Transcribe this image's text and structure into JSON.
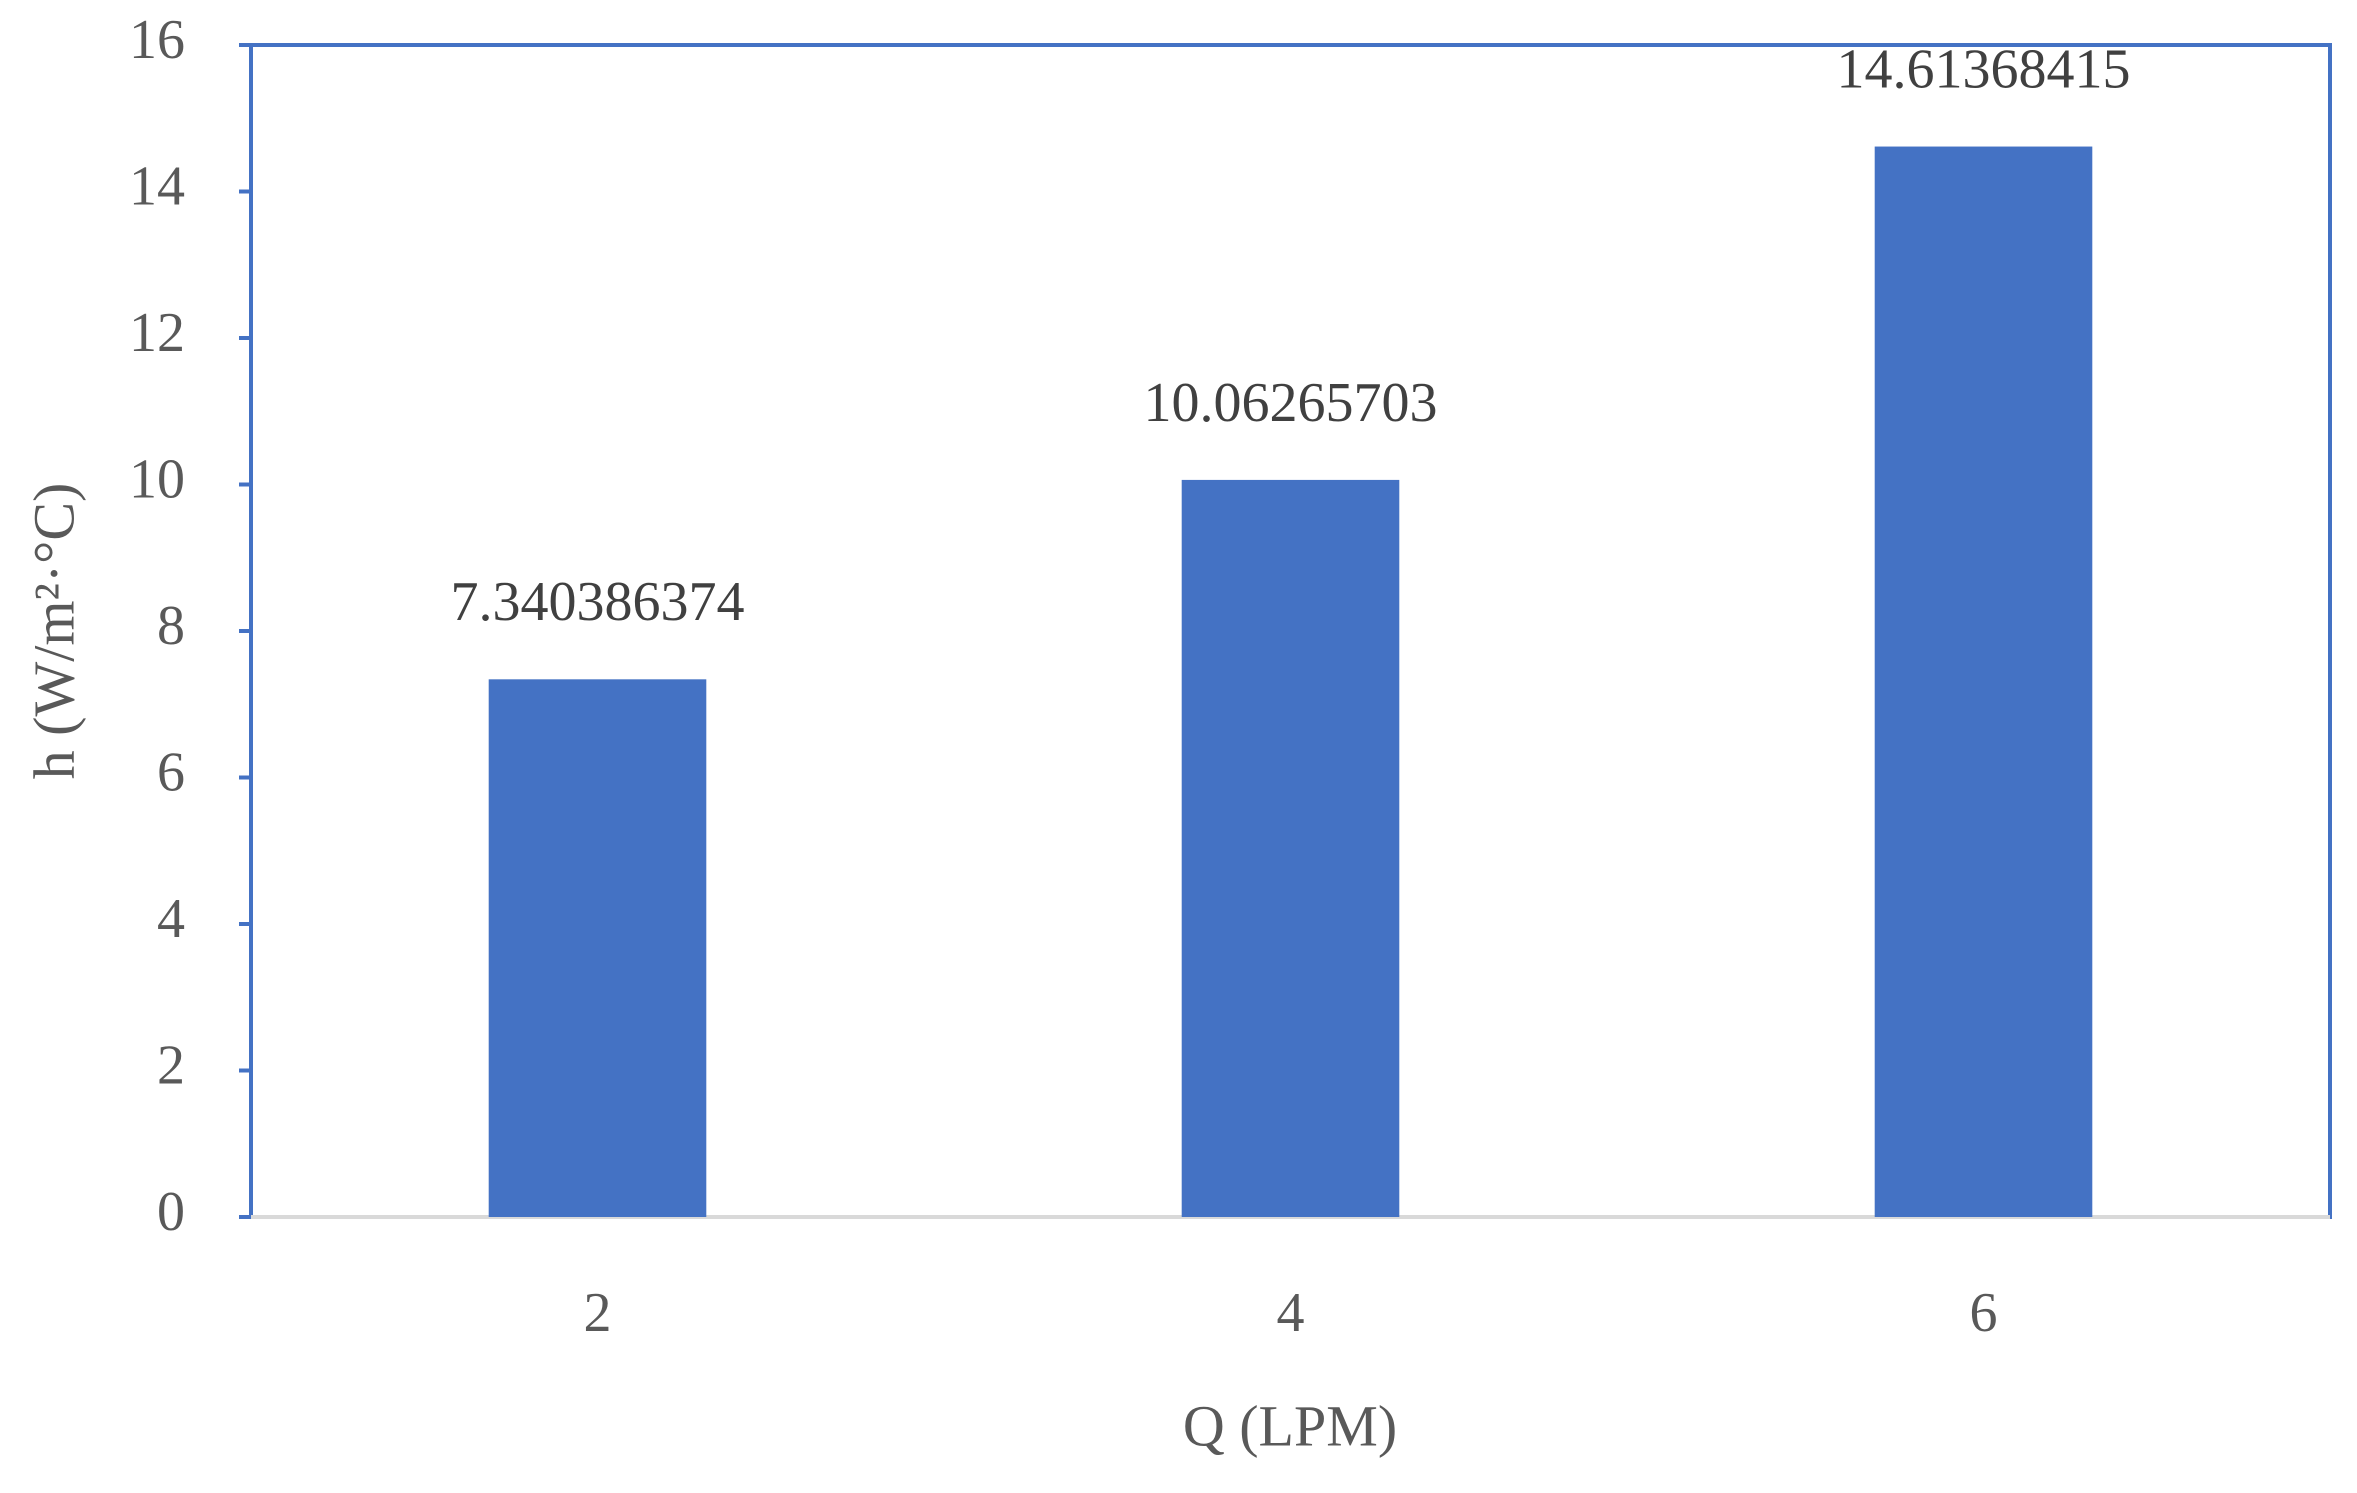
{
  "chart_data": {
    "type": "bar",
    "x_label": "Q (LPM)",
    "y_label": "h (W/m²·°C)",
    "categories": [
      "2",
      "4",
      "6"
    ],
    "values": [
      7.340386374,
      10.06265703,
      14.61368415
    ],
    "color": "#4472c4",
    "ylim": [
      0,
      16
    ],
    "yticks": [
      0,
      2,
      4,
      6,
      8,
      10,
      12,
      14,
      16
    ],
    "grid": false
  }
}
